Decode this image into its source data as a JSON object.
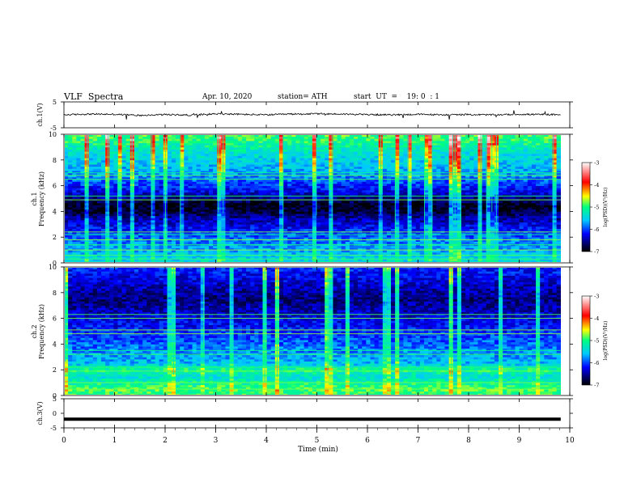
{
  "header": {
    "title": "VLF  Spectra",
    "date": "Apr. 10, 2020",
    "station": "station= ATH",
    "start_ut": "start  UT  =    19: 0  : 1"
  },
  "colorbar": {
    "label": "log(PSD)(V²/Hz)",
    "ticks": [
      -3,
      -4,
      -5,
      -6,
      -7
    ],
    "range": [
      -7,
      -3
    ]
  },
  "chart_data": [
    {
      "type": "line",
      "name": "ch1",
      "ylabel": "ch.1(V)",
      "ylim": [
        -5,
        5
      ],
      "y_ticks": [
        5,
        -5
      ],
      "xlim": [
        0,
        9.82
      ],
      "x": [
        0,
        0.5,
        1,
        1.5,
        2,
        2.5,
        3,
        3.5,
        4,
        4.5,
        5,
        5.5,
        6,
        6.5,
        7,
        7.5,
        8,
        8.5,
        9,
        9.8
      ],
      "values": [
        0,
        0.3,
        0.2,
        -0.2,
        0.1,
        -0.1,
        0.4,
        0.2,
        0.0,
        0.3,
        0.4,
        0.3,
        0.1,
        0.0,
        0.2,
        0.0,
        0.1,
        0.0,
        0.2,
        0.1
      ]
    },
    {
      "type": "heatmap",
      "name": "ch1-spectrogram",
      "ylabel_line1": "ch.1",
      "ylabel_line2": "Frequency  (kHz)",
      "ylim": [
        0,
        10
      ],
      "y_ticks": [
        0,
        2,
        4,
        6,
        8,
        10
      ],
      "xlim": [
        0,
        9.82
      ],
      "log_psd_profile": {
        "freq_khz": [
          0,
          0.5,
          1,
          1.5,
          2,
          2.5,
          3,
          3.5,
          4,
          4.5,
          5,
          5.5,
          6,
          6.5,
          7,
          7.5,
          8,
          8.5,
          9,
          9.5,
          10
        ],
        "log_psd": [
          -5.4,
          -5.5,
          -5.7,
          -5.8,
          -5.9,
          -6.1,
          -6.3,
          -6.5,
          -6.8,
          -6.9,
          -6.6,
          -6.3,
          -6.1,
          -5.9,
          -5.7,
          -5.6,
          -5.5,
          -5.4,
          -5.2,
          -5.0,
          -4.9
        ]
      },
      "narrowband_lines_khz": [
        0.3,
        0.6,
        1.0,
        1.4,
        1.8,
        2.2,
        2.4,
        4.9,
        5.2,
        6.5,
        6.8,
        7.0
      ]
    },
    {
      "type": "heatmap",
      "name": "ch2-spectrogram",
      "ylabel_line1": "ch.2",
      "ylabel_line2": "Frequency  (kHz)",
      "ylim": [
        0,
        10
      ],
      "y_ticks": [
        0,
        2,
        4,
        6,
        8,
        10
      ],
      "xlim": [
        0,
        9.82
      ],
      "log_psd_profile": {
        "freq_khz": [
          0,
          0.5,
          1,
          1.5,
          2,
          2.5,
          3,
          3.5,
          4,
          4.5,
          5,
          5.5,
          6,
          6.5,
          7,
          7.5,
          8,
          8.5,
          9,
          9.5,
          10
        ],
        "log_psd": [
          -5.0,
          -4.9,
          -5.1,
          -5.4,
          -5.0,
          -5.6,
          -5.7,
          -5.8,
          -5.9,
          -6.0,
          -6.1,
          -6.2,
          -6.3,
          -6.4,
          -6.5,
          -6.6,
          -6.5,
          -6.4,
          -6.3,
          -6.2,
          -6.1
        ]
      },
      "narrowband_lines_khz": [
        0.5,
        1.0,
        1.9,
        2.2,
        3.2,
        3.5,
        4.8,
        5.1,
        6.0,
        6.3
      ]
    },
    {
      "type": "line",
      "name": "ch3",
      "ylabel": "ch.3(V)",
      "ylim": [
        -5,
        5
      ],
      "y_ticks": [
        5,
        0,
        -5
      ],
      "xlim": [
        0,
        9.82
      ],
      "x": [
        0,
        9.82
      ],
      "values": [
        -2,
        -2
      ]
    }
  ],
  "x_axis": {
    "label": "Time  (min)",
    "ticks": [
      0,
      1,
      2,
      3,
      4,
      5,
      6,
      7,
      8,
      9,
      10
    ],
    "range": [
      0,
      10
    ]
  }
}
